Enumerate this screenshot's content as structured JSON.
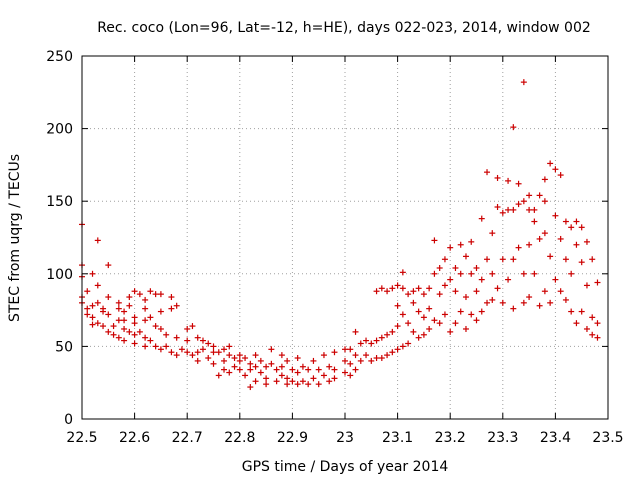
{
  "chart_data": {
    "type": "scatter",
    "title": "Rec. coco (Lon=96, Lat=-12, h=HE), days 022-023, 2014, window 002",
    "xlabel": "GPS time / Days of year 2014",
    "ylabel": "STEC from uqrg / TECUs",
    "xlim": [
      22.5,
      23.5
    ],
    "ylim": [
      0,
      250
    ],
    "xticks": [
      "22.5",
      "22.6",
      "22.7",
      "22.8",
      "22.9",
      "23",
      "23.1",
      "23.2",
      "23.3",
      "23.4",
      "23.5"
    ],
    "yticks": [
      "0",
      "50",
      "100",
      "150",
      "200",
      "250"
    ],
    "grid": true,
    "marker": "+",
    "color": "#cc0000",
    "series": [
      {
        "points": [
          [
            22.5,
            134
          ],
          [
            22.5,
            106
          ],
          [
            22.5,
            98
          ],
          [
            22.5,
            84
          ],
          [
            22.5,
            80
          ],
          [
            22.51,
            76
          ],
          [
            22.51,
            72
          ],
          [
            22.51,
            88
          ],
          [
            22.52,
            100
          ],
          [
            22.52,
            78
          ],
          [
            22.52,
            70
          ],
          [
            22.52,
            65
          ],
          [
            22.53,
            123
          ],
          [
            22.53,
            92
          ],
          [
            22.53,
            80
          ],
          [
            22.53,
            66
          ],
          [
            22.54,
            76
          ],
          [
            22.54,
            74
          ],
          [
            22.54,
            64
          ],
          [
            22.55,
            106
          ],
          [
            22.55,
            84
          ],
          [
            22.55,
            72
          ],
          [
            22.55,
            60
          ],
          [
            22.56,
            64
          ],
          [
            22.56,
            58
          ],
          [
            22.57,
            80
          ],
          [
            22.57,
            76
          ],
          [
            22.57,
            68
          ],
          [
            22.57,
            56
          ],
          [
            22.58,
            74
          ],
          [
            22.58,
            68
          ],
          [
            22.58,
            62
          ],
          [
            22.58,
            54
          ],
          [
            22.59,
            84
          ],
          [
            22.59,
            78
          ],
          [
            22.59,
            60
          ],
          [
            22.6,
            88
          ],
          [
            22.6,
            70
          ],
          [
            22.6,
            66
          ],
          [
            22.6,
            58
          ],
          [
            22.6,
            52
          ],
          [
            22.61,
            86
          ],
          [
            22.61,
            60
          ],
          [
            22.62,
            82
          ],
          [
            22.62,
            76
          ],
          [
            22.62,
            68
          ],
          [
            22.62,
            56
          ],
          [
            22.62,
            50
          ],
          [
            22.63,
            88
          ],
          [
            22.63,
            70
          ],
          [
            22.63,
            54
          ],
          [
            22.64,
            86
          ],
          [
            22.64,
            64
          ],
          [
            22.64,
            50
          ],
          [
            22.65,
            86
          ],
          [
            22.65,
            74
          ],
          [
            22.65,
            62
          ],
          [
            22.65,
            48
          ],
          [
            22.66,
            58
          ],
          [
            22.66,
            50
          ],
          [
            22.67,
            84
          ],
          [
            22.67,
            76
          ],
          [
            22.67,
            46
          ],
          [
            22.68,
            78
          ],
          [
            22.68,
            56
          ],
          [
            22.68,
            44
          ],
          [
            22.69,
            48
          ],
          [
            22.7,
            62
          ],
          [
            22.7,
            54
          ],
          [
            22.7,
            46
          ],
          [
            22.71,
            64
          ],
          [
            22.71,
            44
          ],
          [
            22.72,
            56
          ],
          [
            22.72,
            46
          ],
          [
            22.72,
            40
          ],
          [
            22.73,
            54
          ],
          [
            22.73,
            48
          ],
          [
            22.74,
            52
          ],
          [
            22.74,
            42
          ],
          [
            22.75,
            50
          ],
          [
            22.75,
            46
          ],
          [
            22.75,
            38
          ],
          [
            22.76,
            46
          ],
          [
            22.76,
            30
          ],
          [
            22.77,
            48
          ],
          [
            22.77,
            40
          ],
          [
            22.77,
            34
          ],
          [
            22.78,
            50
          ],
          [
            22.78,
            44
          ],
          [
            22.78,
            32
          ],
          [
            22.79,
            42
          ],
          [
            22.79,
            36
          ],
          [
            22.8,
            44
          ],
          [
            22.8,
            40
          ],
          [
            22.8,
            34
          ],
          [
            22.81,
            42
          ],
          [
            22.81,
            30
          ],
          [
            22.82,
            38
          ],
          [
            22.82,
            34
          ],
          [
            22.82,
            22
          ],
          [
            22.83,
            44
          ],
          [
            22.83,
            36
          ],
          [
            22.83,
            26
          ],
          [
            22.84,
            40
          ],
          [
            22.84,
            32
          ],
          [
            22.85,
            36
          ],
          [
            22.85,
            28
          ],
          [
            22.85,
            24
          ],
          [
            22.86,
            48
          ],
          [
            22.86,
            38
          ],
          [
            22.87,
            34
          ],
          [
            22.87,
            26
          ],
          [
            22.88,
            44
          ],
          [
            22.88,
            36
          ],
          [
            22.88,
            30
          ],
          [
            22.89,
            40
          ],
          [
            22.89,
            28
          ],
          [
            22.89,
            24
          ],
          [
            22.9,
            34
          ],
          [
            22.9,
            26
          ],
          [
            22.91,
            42
          ],
          [
            22.91,
            32
          ],
          [
            22.91,
            24
          ],
          [
            22.92,
            36
          ],
          [
            22.92,
            26
          ],
          [
            22.93,
            34
          ],
          [
            22.93,
            24
          ],
          [
            22.94,
            40
          ],
          [
            22.94,
            28
          ],
          [
            22.95,
            34
          ],
          [
            22.95,
            24
          ],
          [
            22.96,
            44
          ],
          [
            22.96,
            30
          ],
          [
            22.97,
            36
          ],
          [
            22.97,
            26
          ],
          [
            22.98,
            46
          ],
          [
            22.98,
            34
          ],
          [
            22.98,
            28
          ],
          [
            23.0,
            48
          ],
          [
            23.0,
            40
          ],
          [
            23.0,
            32
          ],
          [
            23.01,
            48
          ],
          [
            23.01,
            38
          ],
          [
            23.01,
            30
          ],
          [
            23.02,
            60
          ],
          [
            23.02,
            44
          ],
          [
            23.02,
            34
          ],
          [
            23.03,
            52
          ],
          [
            23.03,
            40
          ],
          [
            23.04,
            54
          ],
          [
            23.04,
            44
          ],
          [
            23.05,
            52
          ],
          [
            23.05,
            40
          ],
          [
            23.06,
            88
          ],
          [
            23.06,
            54
          ],
          [
            23.06,
            42
          ],
          [
            23.07,
            90
          ],
          [
            23.07,
            56
          ],
          [
            23.07,
            42
          ],
          [
            23.08,
            88
          ],
          [
            23.08,
            58
          ],
          [
            23.08,
            44
          ],
          [
            23.09,
            90
          ],
          [
            23.09,
            60
          ],
          [
            23.09,
            46
          ],
          [
            23.1,
            92
          ],
          [
            23.1,
            78
          ],
          [
            23.1,
            64
          ],
          [
            23.1,
            48
          ],
          [
            23.11,
            101
          ],
          [
            23.11,
            90
          ],
          [
            23.11,
            72
          ],
          [
            23.11,
            50
          ],
          [
            23.12,
            86
          ],
          [
            23.12,
            66
          ],
          [
            23.12,
            52
          ],
          [
            23.13,
            88
          ],
          [
            23.13,
            80
          ],
          [
            23.13,
            60
          ],
          [
            23.14,
            90
          ],
          [
            23.14,
            74
          ],
          [
            23.14,
            56
          ],
          [
            23.15,
            86
          ],
          [
            23.15,
            70
          ],
          [
            23.15,
            58
          ],
          [
            23.16,
            90
          ],
          [
            23.16,
            76
          ],
          [
            23.16,
            62
          ],
          [
            23.17,
            123
          ],
          [
            23.17,
            100
          ],
          [
            23.17,
            68
          ],
          [
            23.18,
            104
          ],
          [
            23.18,
            86
          ],
          [
            23.18,
            66
          ],
          [
            23.19,
            110
          ],
          [
            23.19,
            92
          ],
          [
            23.19,
            72
          ],
          [
            23.2,
            118
          ],
          [
            23.2,
            96
          ],
          [
            23.2,
            60
          ],
          [
            23.21,
            104
          ],
          [
            23.21,
            88
          ],
          [
            23.21,
            66
          ],
          [
            23.22,
            120
          ],
          [
            23.22,
            100
          ],
          [
            23.22,
            74
          ],
          [
            23.23,
            112
          ],
          [
            23.23,
            84
          ],
          [
            23.23,
            62
          ],
          [
            23.24,
            122
          ],
          [
            23.24,
            100
          ],
          [
            23.24,
            72
          ],
          [
            23.25,
            104
          ],
          [
            23.25,
            88
          ],
          [
            23.25,
            68
          ],
          [
            23.26,
            138
          ],
          [
            23.26,
            96
          ],
          [
            23.26,
            74
          ],
          [
            23.27,
            170
          ],
          [
            23.27,
            110
          ],
          [
            23.27,
            80
          ],
          [
            23.28,
            128
          ],
          [
            23.28,
            100
          ],
          [
            23.28,
            82
          ],
          [
            23.29,
            166
          ],
          [
            23.29,
            146
          ],
          [
            23.29,
            90
          ],
          [
            23.3,
            142
          ],
          [
            23.3,
            110
          ],
          [
            23.3,
            80
          ],
          [
            23.31,
            164
          ],
          [
            23.31,
            144
          ],
          [
            23.31,
            96
          ],
          [
            23.32,
            201
          ],
          [
            23.32,
            144
          ],
          [
            23.32,
            110
          ],
          [
            23.32,
            76
          ],
          [
            23.33,
            162
          ],
          [
            23.33,
            148
          ],
          [
            23.33,
            118
          ],
          [
            23.34,
            232
          ],
          [
            23.34,
            150
          ],
          [
            23.34,
            100
          ],
          [
            23.34,
            80
          ],
          [
            23.35,
            154
          ],
          [
            23.35,
            144
          ],
          [
            23.35,
            120
          ],
          [
            23.35,
            84
          ],
          [
            23.36,
            144
          ],
          [
            23.36,
            136
          ],
          [
            23.36,
            100
          ],
          [
            23.37,
            154
          ],
          [
            23.37,
            124
          ],
          [
            23.37,
            78
          ],
          [
            23.38,
            165
          ],
          [
            23.38,
            150
          ],
          [
            23.38,
            128
          ],
          [
            23.38,
            88
          ],
          [
            23.39,
            176
          ],
          [
            23.39,
            112
          ],
          [
            23.39,
            80
          ],
          [
            23.4,
            172
          ],
          [
            23.4,
            140
          ],
          [
            23.4,
            96
          ],
          [
            23.41,
            168
          ],
          [
            23.41,
            124
          ],
          [
            23.41,
            88
          ],
          [
            23.42,
            136
          ],
          [
            23.42,
            110
          ],
          [
            23.42,
            82
          ],
          [
            23.43,
            132
          ],
          [
            23.43,
            100
          ],
          [
            23.43,
            74
          ],
          [
            23.44,
            136
          ],
          [
            23.44,
            120
          ],
          [
            23.44,
            66
          ],
          [
            23.45,
            132
          ],
          [
            23.45,
            108
          ],
          [
            23.45,
            74
          ],
          [
            23.46,
            122
          ],
          [
            23.46,
            92
          ],
          [
            23.46,
            62
          ],
          [
            23.47,
            110
          ],
          [
            23.47,
            70
          ],
          [
            23.47,
            58
          ],
          [
            23.48,
            94
          ],
          [
            23.48,
            66
          ],
          [
            23.48,
            56
          ]
        ]
      }
    ]
  }
}
